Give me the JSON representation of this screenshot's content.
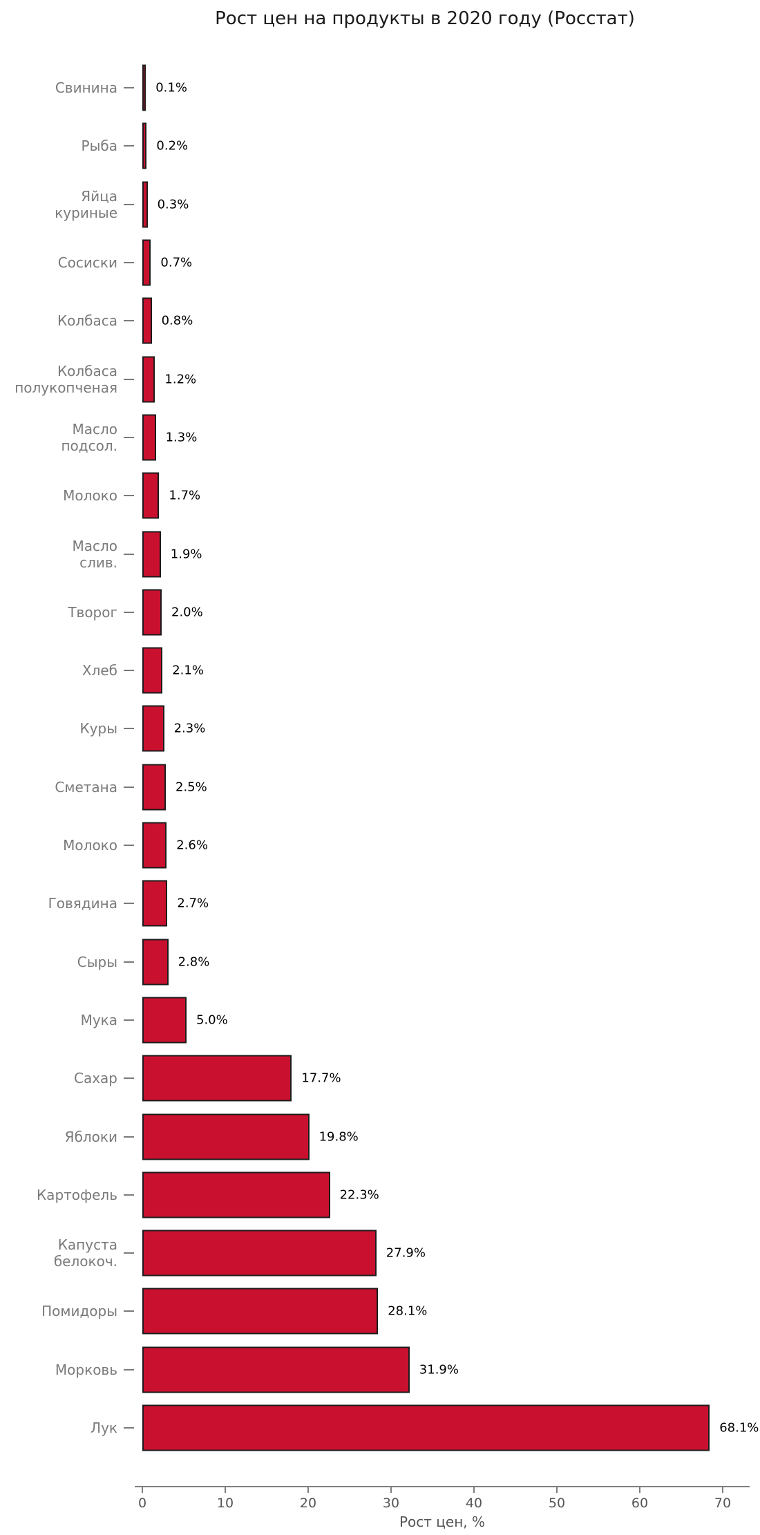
{
  "title": "Рост цен на продукты в 2020 году (Росстат)",
  "chart_data": {
    "type": "bar",
    "orientation": "horizontal",
    "title": "Рост цен на продукты в 2020 году (Росстат)",
    "xlabel": "Рост цен, %",
    "categories": [
      "Свинина",
      "Рыба",
      "Яйца\nкуриные",
      "Сосиски",
      "Колбаса",
      "Колбаса\nполукопченая",
      "Масло\nподсол.",
      "Молоко",
      "Масло\nслив.",
      "Творог",
      "Хлеб",
      "Куры",
      "Сметана",
      "Молоко",
      "Говядина",
      "Сыры",
      "Мука",
      "Сахар",
      "Яблоки",
      "Картофель",
      "Капуста\nбелокоч.",
      "Помидоры",
      "Морковь",
      "Лук"
    ],
    "values": [
      0.1,
      0.2,
      0.3,
      0.7,
      0.8,
      1.2,
      1.3,
      1.7,
      1.9,
      2.0,
      2.1,
      2.3,
      2.5,
      2.6,
      2.7,
      2.8,
      5.0,
      17.7,
      19.8,
      22.3,
      27.9,
      28.1,
      31.9,
      68.1
    ],
    "value_labels": [
      "0.1%",
      "0.2%",
      "0.3%",
      "0.7%",
      "0.8%",
      "1.2%",
      "1.3%",
      "1.7%",
      "1.9%",
      "2.0%",
      "2.1%",
      "2.3%",
      "2.5%",
      "2.6%",
      "2.7%",
      "2.8%",
      "5.0%",
      "17.7%",
      "19.8%",
      "22.3%",
      "27.9%",
      "28.1%",
      "31.9%",
      "68.1%"
    ],
    "xticks": [
      0,
      10,
      20,
      30,
      40,
      50,
      60,
      70
    ],
    "xtick_labels": [
      "0",
      "10",
      "20",
      "30",
      "40",
      "50",
      "60",
      "70"
    ],
    "xlim": [
      0,
      73
    ],
    "grid": false,
    "legend": null,
    "colors": {
      "bar_fill": "#c9112f",
      "bar_edge": "#1c1c1c",
      "category_text": "#7a7a7a",
      "value_text": "#000000",
      "axis": "#7f7f7f",
      "tick_text": "#555555",
      "title_text": "#1a1a1a"
    }
  }
}
